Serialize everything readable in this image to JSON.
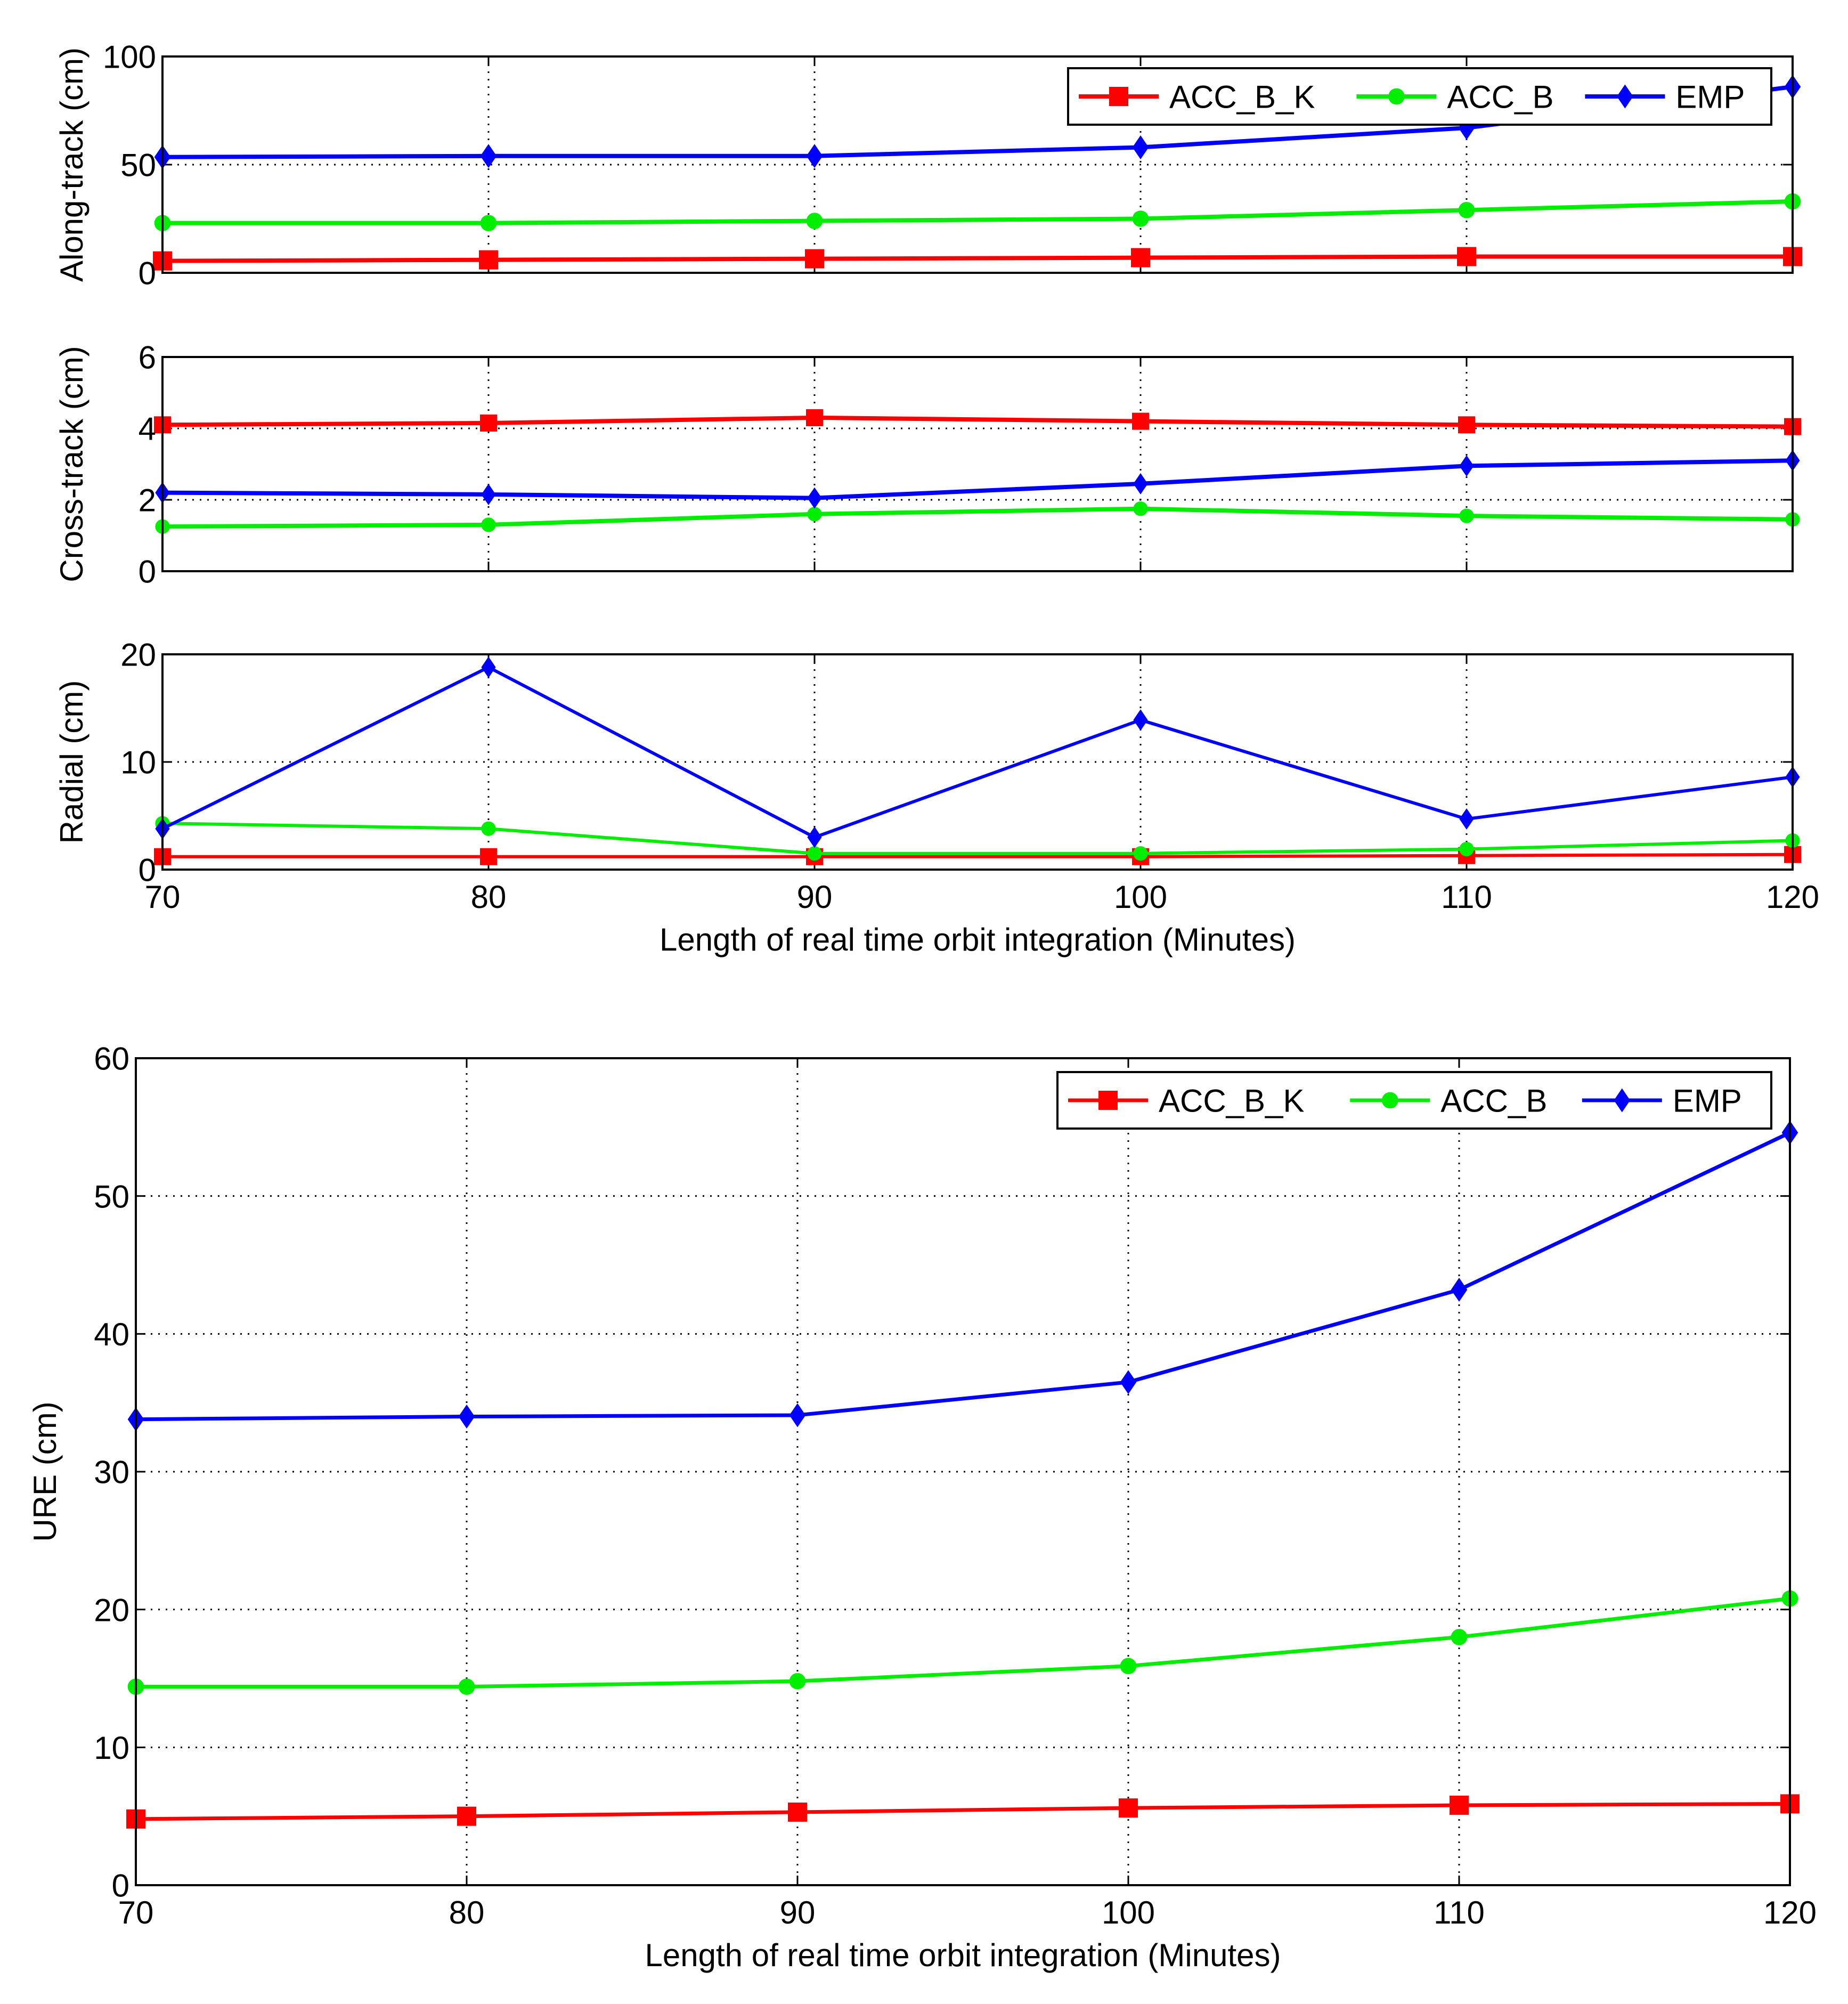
{
  "colors": {
    "ACC_B_K": "#ff0000",
    "ACC_B": "#00ee00",
    "EMP": "#0000ff",
    "axis": "#000000",
    "grid": "#000000"
  },
  "legend_entries": [
    "ACC_B_K",
    "ACC_B",
    "EMP"
  ],
  "chart_data": [
    {
      "type": "line",
      "ylabel": "Along-track (cm)",
      "xlabel": "",
      "xlim": [
        70,
        120
      ],
      "ylim": [
        0,
        100
      ],
      "yticks": [
        0,
        50,
        100
      ],
      "xticks": [
        70,
        80,
        90,
        100,
        110,
        120
      ],
      "show_x_tick_labels": false,
      "grid": true,
      "legend": "top-right",
      "x": [
        70,
        80,
        90,
        100,
        110,
        120
      ],
      "series": [
        {
          "name": "ACC_B_K",
          "marker": "square",
          "values": [
            5.5,
            6,
            6.5,
            7,
            7.5,
            7.5
          ]
        },
        {
          "name": "ACC_B",
          "marker": "circle",
          "values": [
            23,
            23,
            24,
            25,
            29,
            33
          ]
        },
        {
          "name": "EMP",
          "marker": "diamond",
          "values": [
            53.5,
            54,
            54,
            58,
            67,
            86
          ]
        }
      ]
    },
    {
      "type": "line",
      "ylabel": "Cross-track (cm)",
      "xlabel": "",
      "xlim": [
        70,
        120
      ],
      "ylim": [
        0,
        6
      ],
      "yticks": [
        0,
        2,
        4,
        6
      ],
      "xticks": [
        70,
        80,
        90,
        100,
        110,
        120
      ],
      "show_x_tick_labels": false,
      "grid": true,
      "x": [
        70,
        80,
        90,
        100,
        110,
        120
      ],
      "series": [
        {
          "name": "ACC_B_K",
          "marker": "square",
          "values": [
            4.1,
            4.15,
            4.3,
            4.2,
            4.1,
            4.05
          ]
        },
        {
          "name": "ACC_B",
          "marker": "circle",
          "values": [
            1.25,
            1.3,
            1.6,
            1.75,
            1.55,
            1.45
          ]
        },
        {
          "name": "EMP",
          "marker": "diamond",
          "values": [
            2.2,
            2.15,
            2.05,
            2.45,
            2.95,
            3.1
          ]
        }
      ]
    },
    {
      "type": "line",
      "ylabel": "Radial (cm)",
      "xlabel": "Length of real time orbit integration (Minutes)",
      "xlim": [
        70,
        120
      ],
      "ylim": [
        0,
        20
      ],
      "yticks": [
        0,
        10,
        20
      ],
      "xticks": [
        70,
        80,
        90,
        100,
        110,
        120
      ],
      "show_x_tick_labels": true,
      "grid": true,
      "x": [
        70,
        80,
        90,
        100,
        110,
        120
      ],
      "series": [
        {
          "name": "ACC_B_K",
          "marker": "square",
          "values": [
            1.2,
            1.2,
            1.2,
            1.2,
            1.3,
            1.4
          ]
        },
        {
          "name": "ACC_B",
          "marker": "circle",
          "values": [
            4.3,
            3.8,
            1.5,
            1.5,
            1.9,
            2.7
          ]
        },
        {
          "name": "EMP",
          "marker": "diamond",
          "values": [
            3.8,
            18.8,
            3.0,
            13.9,
            4.7,
            8.6
          ]
        }
      ]
    },
    {
      "type": "line",
      "ylabel": "URE (cm)",
      "xlabel": "Length of real time orbit integration (Minutes)",
      "xlim": [
        70,
        120
      ],
      "ylim": [
        0,
        60
      ],
      "yticks": [
        0,
        10,
        20,
        30,
        40,
        50,
        60
      ],
      "xticks": [
        70,
        80,
        90,
        100,
        110,
        120
      ],
      "show_x_tick_labels": true,
      "grid": true,
      "legend": "top-right",
      "x": [
        70,
        80,
        90,
        100,
        110,
        120
      ],
      "series": [
        {
          "name": "ACC_B_K",
          "marker": "square",
          "values": [
            4.8,
            5.0,
            5.3,
            5.6,
            5.8,
            5.9
          ]
        },
        {
          "name": "ACC_B",
          "marker": "circle",
          "values": [
            14.4,
            14.4,
            14.8,
            15.9,
            18.0,
            20.8
          ]
        },
        {
          "name": "EMP",
          "marker": "diamond",
          "values": [
            33.8,
            34.0,
            34.1,
            36.5,
            43.2,
            54.6
          ]
        }
      ]
    }
  ]
}
